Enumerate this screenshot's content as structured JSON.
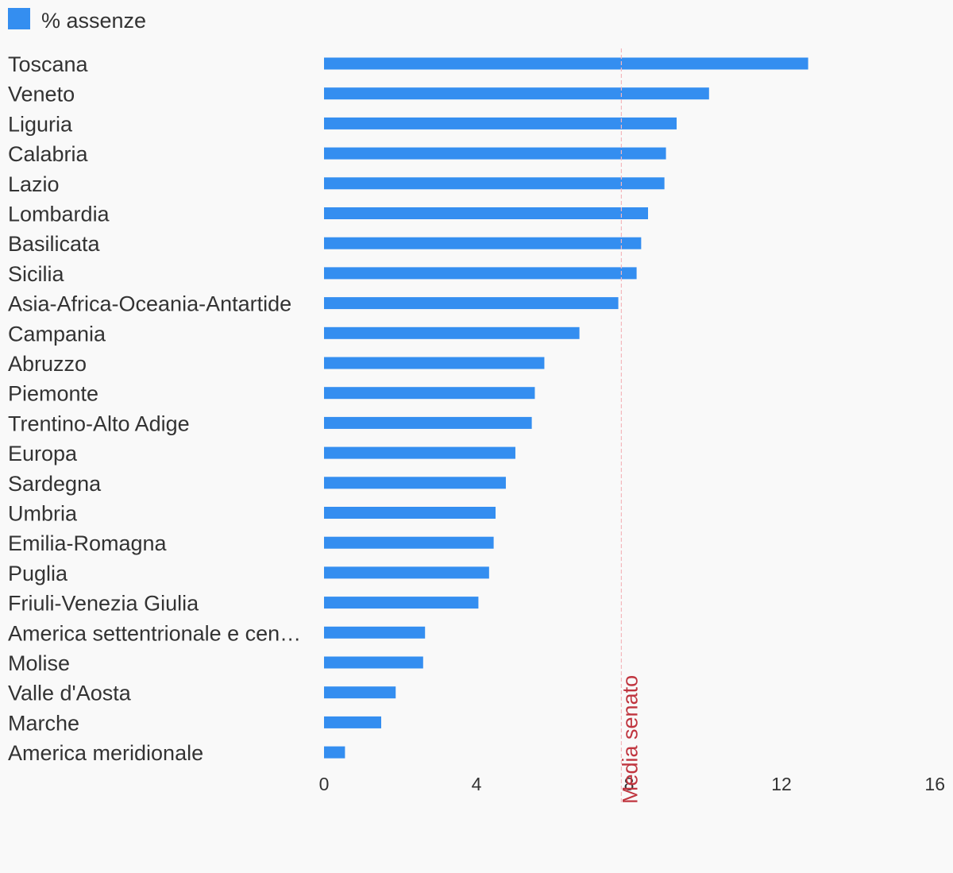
{
  "colors": {
    "background": "#f9f9f9",
    "bar": "#348ef0",
    "text": "#333333",
    "reference_line": "#f4b7bd",
    "reference_label": "#c0353f"
  },
  "legend": {
    "label": "% assenze",
    "position": "top-left"
  },
  "reference_line": {
    "label": "Media senato",
    "value": 7.8
  },
  "chart_data": {
    "type": "bar",
    "orientation": "horizontal",
    "title": "",
    "xlabel": "",
    "ylabel": "",
    "xlim": [
      0,
      16
    ],
    "xticks": [
      "0",
      "4",
      "8",
      "12",
      "16"
    ],
    "grid": false,
    "categories": [
      "Toscana",
      "Veneto",
      "Liguria",
      "Calabria",
      "Lazio",
      "Lombardia",
      "Basilicata",
      "Sicilia",
      "Asia-Africa-Oceania-Antartide",
      "Campania",
      "Abruzzo",
      "Piemonte",
      "Trentino-Alto Adige",
      "Europa",
      "Sardegna",
      "Umbria",
      "Emilia-Romagna",
      "Puglia",
      "Friuli-Venezia Giulia",
      "America settentrionale e cen…",
      "Molise",
      "Valle d'Aosta",
      "Marche",
      "America meridionale"
    ],
    "series": [
      {
        "name": "% assenze",
        "values": [
          12.7,
          10.1,
          9.25,
          8.97,
          8.93,
          8.5,
          8.32,
          8.2,
          7.72,
          6.7,
          5.78,
          5.53,
          5.45,
          5.02,
          4.77,
          4.5,
          4.45,
          4.33,
          4.05,
          2.65,
          2.6,
          1.88,
          1.5,
          0.55
        ]
      }
    ]
  }
}
